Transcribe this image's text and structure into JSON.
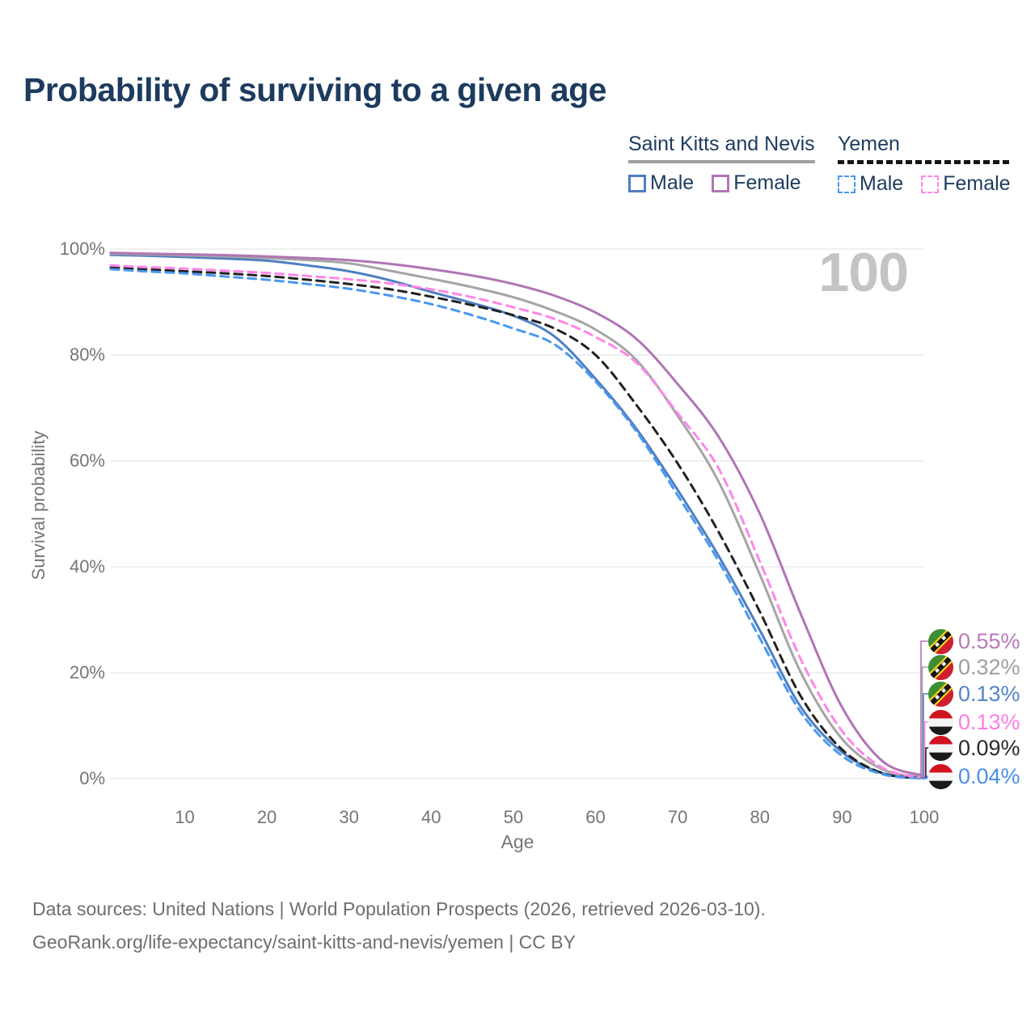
{
  "page": {
    "title": "Probability of surviving to a given age",
    "watermark_age": "100",
    "footer_line1": "Data sources: United Nations | World Population Prospects (2026, retrieved 2026-03-10).",
    "footer_line2": "GeoRank.org/life-expectancy/saint-kitts-and-nevis/yemen | CC BY"
  },
  "legend": {
    "groups": [
      {
        "label": "Saint Kitts and Nevis",
        "underline_style": "solid",
        "underline_color": "#a0a0a0",
        "items": [
          {
            "label": "Male",
            "swatch_color": "#4e7fc1",
            "dashed": false
          },
          {
            "label": "Female",
            "swatch_color": "#b175b4",
            "dashed": false
          }
        ]
      },
      {
        "label": "Yemen",
        "underline_style": "dashed",
        "underline_color": "#161616",
        "items": [
          {
            "label": "Male",
            "swatch_color": "#4a98f1",
            "dashed": true
          },
          {
            "label": "Female",
            "swatch_color": "#ff86e8",
            "dashed": true
          }
        ]
      }
    ]
  },
  "chart_data": {
    "type": "line",
    "title": "Probability of surviving to a given age",
    "xlabel": "Age",
    "ylabel": "Survival probability",
    "xlim": [
      1,
      100
    ],
    "ylim": [
      0,
      100
    ],
    "grid": "horizontal gridlines every 20%",
    "legend_position": "top-right",
    "age_watermark": "100",
    "x_ticks": [
      10,
      20,
      30,
      40,
      50,
      60,
      70,
      80,
      90,
      100
    ],
    "x_tick_labels": [
      "10",
      "20",
      "30",
      "40",
      "50",
      "60",
      "70",
      "80",
      "90",
      "100"
    ],
    "y_ticks": [
      0,
      20,
      40,
      60,
      80,
      100
    ],
    "y_tick_labels": [
      "0%",
      "20%",
      "40%",
      "60%",
      "80%",
      "100%"
    ],
    "ages": [
      1,
      5,
      10,
      15,
      20,
      25,
      30,
      35,
      40,
      45,
      50,
      55,
      60,
      65,
      70,
      75,
      80,
      85,
      90,
      95,
      100
    ],
    "series": [
      {
        "name": "Saint Kitts and Nevis — Female",
        "country": "Saint Kitts and Nevis",
        "sex": "Female",
        "flag": "saint-kitts-and-nevis",
        "style": "solid",
        "color": "#b175b4",
        "label_color": "#b87ab8",
        "end_label": "0.55%",
        "values": [
          99.3,
          99.15,
          99.0,
          98.85,
          98.6,
          98.3,
          97.9,
          97.2,
          96.2,
          95.0,
          93.4,
          91.2,
          88.0,
          83.0,
          74.5,
          64.5,
          50.0,
          31.0,
          13.5,
          3.2,
          0.55
        ]
      },
      {
        "name": "Saint Kitts and Nevis — Both sexes",
        "country": "Saint Kitts and Nevis",
        "sex": "Both sexes",
        "flag": "saint-kitts-and-nevis",
        "style": "solid",
        "color": "#a5a5a5",
        "label_color": "#9e9e9e",
        "end_label": "0.32%",
        "values": [
          99.1,
          99.0,
          98.8,
          98.6,
          98.3,
          97.9,
          97.3,
          95.9,
          94.4,
          92.8,
          90.9,
          88.3,
          84.8,
          79.0,
          68.5,
          56.0,
          38.5,
          20.0,
          7.5,
          1.7,
          0.32
        ]
      },
      {
        "name": "Saint Kitts and Nevis — Male",
        "country": "Saint Kitts and Nevis",
        "sex": "Male",
        "flag": "saint-kitts-and-nevis",
        "style": "solid",
        "color": "#4e7fc1",
        "label_color": "#5585c8",
        "end_label": "0.13%",
        "values": [
          98.9,
          98.75,
          98.5,
          98.2,
          97.8,
          96.9,
          95.8,
          94.1,
          91.9,
          89.8,
          87.4,
          83.5,
          75.5,
          66.0,
          54.5,
          42.0,
          28.0,
          13.5,
          5.0,
          1.0,
          0.13
        ]
      },
      {
        "name": "Yemen — Female",
        "country": "Yemen",
        "sex": "Female",
        "flag": "yemen",
        "style": "dashed",
        "color": "#ff86e8",
        "label_color": "#ff7ce3",
        "end_label": "0.13%",
        "values": [
          96.9,
          96.6,
          96.3,
          95.9,
          95.5,
          94.9,
          94.3,
          93.5,
          92.4,
          90.9,
          89.0,
          86.8,
          83.4,
          78.5,
          69.0,
          58.5,
          41.0,
          22.5,
          9.0,
          2.0,
          0.13
        ]
      },
      {
        "name": "Yemen — Both sexes",
        "country": "Yemen",
        "sex": "Both sexes",
        "flag": "yemen",
        "style": "dashed",
        "color": "#222222",
        "label_color": "#2a2a2a",
        "end_label": "0.09%",
        "values": [
          96.5,
          96.2,
          95.8,
          95.4,
          94.9,
          94.2,
          93.4,
          92.4,
          91.0,
          89.4,
          87.5,
          85.0,
          80.0,
          70.5,
          59.5,
          46.5,
          31.5,
          15.5,
          5.5,
          1.0,
          0.09
        ]
      },
      {
        "name": "Yemen — Male",
        "country": "Yemen",
        "sex": "Male",
        "flag": "yemen",
        "style": "dashed",
        "color": "#4a98f1",
        "label_color": "#4a90e8",
        "end_label": "0.04%",
        "values": [
          96.2,
          95.8,
          95.4,
          94.8,
          94.2,
          93.4,
          92.5,
          91.2,
          89.6,
          87.5,
          85.0,
          82.0,
          75.0,
          65.5,
          53.5,
          41.0,
          26.5,
          12.5,
          4.3,
          0.8,
          0.04
        ]
      }
    ]
  }
}
